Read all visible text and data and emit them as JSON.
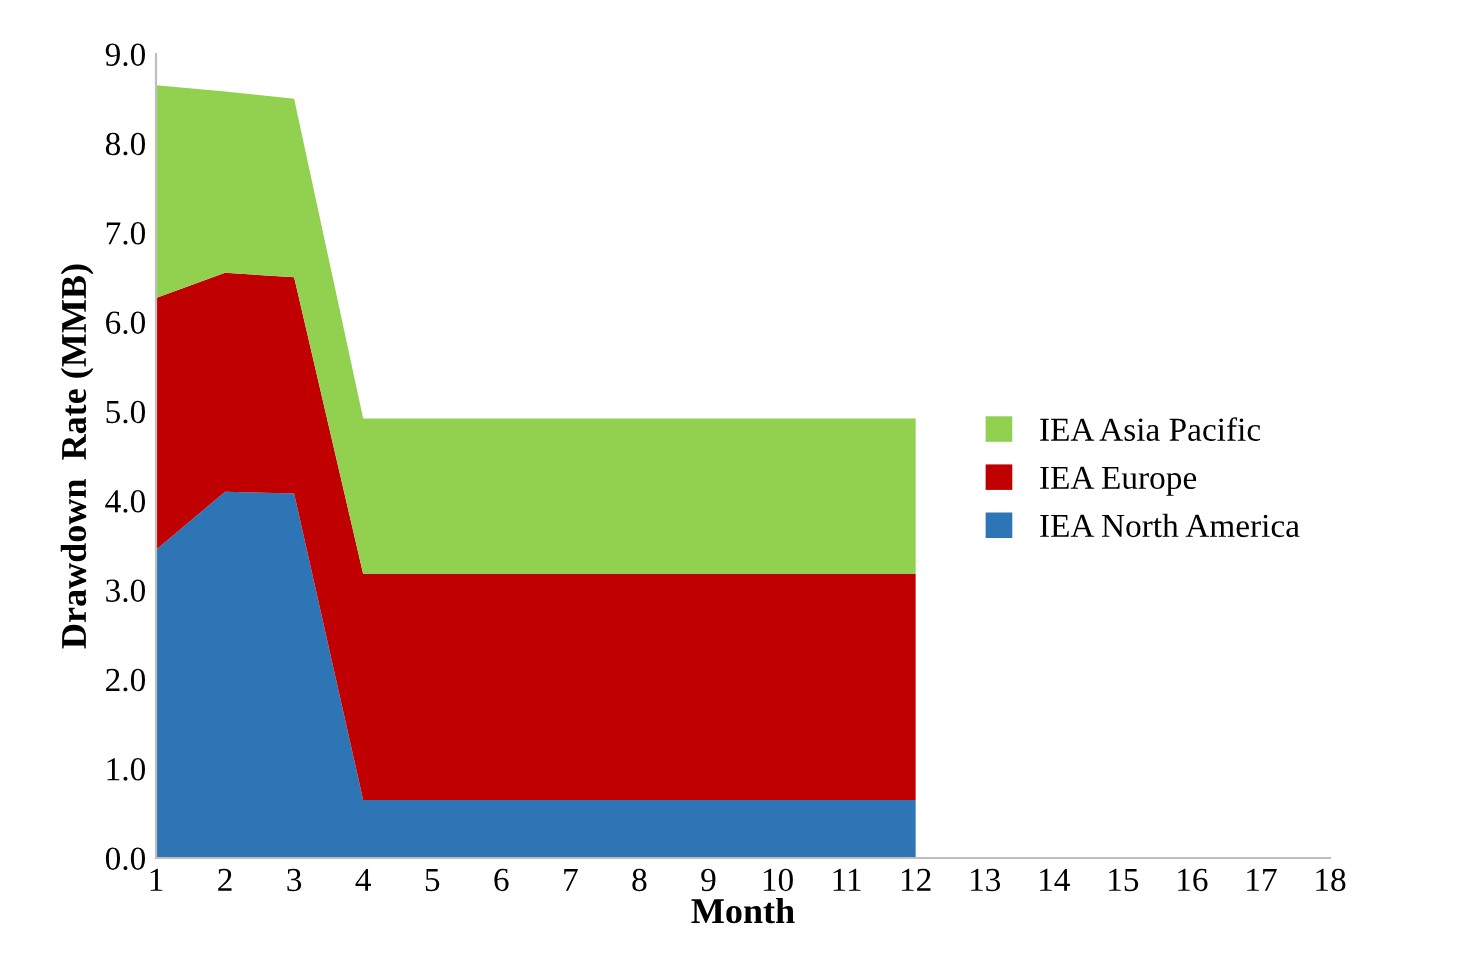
{
  "chart_data": {
    "type": "area",
    "stacked": true,
    "xlabel": "Month",
    "ylabel": "Drawdown  Rate (MMB)",
    "x": [
      1,
      2,
      3,
      4,
      5,
      6,
      7,
      8,
      9,
      10,
      11,
      12
    ],
    "series": [
      {
        "name": "IEA North America",
        "color": "#2e75b6",
        "values": [
          3.45,
          4.1,
          4.08,
          0.65,
          0.65,
          0.65,
          0.65,
          0.65,
          0.65,
          0.65,
          0.65,
          0.65
        ]
      },
      {
        "name": "IEA Europe",
        "color": "#c00000",
        "values": [
          2.82,
          2.45,
          2.42,
          2.53,
          2.53,
          2.53,
          2.53,
          2.53,
          2.53,
          2.53,
          2.53,
          2.53
        ]
      },
      {
        "name": "IEA Asia Pacific",
        "color": "#92d050",
        "values": [
          2.38,
          2.03,
          2.0,
          1.74,
          1.74,
          1.74,
          1.74,
          1.74,
          1.74,
          1.74,
          1.74,
          1.74
        ]
      }
    ],
    "xlim": [
      1,
      18
    ],
    "xticks": [
      1,
      2,
      3,
      4,
      5,
      6,
      7,
      8,
      9,
      10,
      11,
      12,
      13,
      14,
      15,
      16,
      17,
      18
    ],
    "ylim": [
      0,
      9
    ],
    "yticks": [
      {
        "value": 0,
        "label": "0.0"
      },
      {
        "value": 1,
        "label": "1.0"
      },
      {
        "value": 2,
        "label": "2.0"
      },
      {
        "value": 3,
        "label": "3.0"
      },
      {
        "value": 4,
        "label": "4.0"
      },
      {
        "value": 5,
        "label": "5.0"
      },
      {
        "value": 6,
        "label": "6.0"
      },
      {
        "value": 7,
        "label": "7.0"
      },
      {
        "value": 8,
        "label": "8.0"
      },
      {
        "value": 9,
        "label": "9.0"
      }
    ],
    "grid": false,
    "legend": "right"
  }
}
